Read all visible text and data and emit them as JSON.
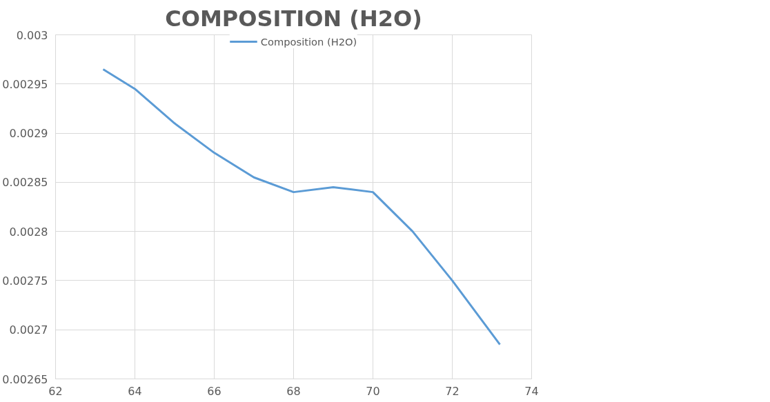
{
  "chart_data": {
    "type": "line",
    "title": "COMPOSITION (H2O)",
    "x": [
      63.2,
      64,
      65,
      66,
      67,
      68,
      69,
      70,
      71,
      72,
      73.2
    ],
    "series": [
      {
        "name": "Composition (H2O)",
        "color": "#5b9bd5",
        "values": [
          0.002965,
          0.002945,
          0.00291,
          0.00288,
          0.002855,
          0.00284,
          0.002845,
          0.00284,
          0.0028,
          0.00275,
          0.002685
        ]
      }
    ],
    "xlim": [
      62,
      74
    ],
    "xticks": [
      62,
      64,
      66,
      68,
      70,
      72,
      74
    ],
    "ylim": [
      0.00265,
      0.003
    ],
    "yticks": [
      0.00265,
      0.0027,
      0.00275,
      0.0028,
      0.00285,
      0.0029,
      0.00295,
      0.003
    ],
    "grid": true,
    "legend": "top",
    "marker": "none",
    "line_style": "solid"
  }
}
